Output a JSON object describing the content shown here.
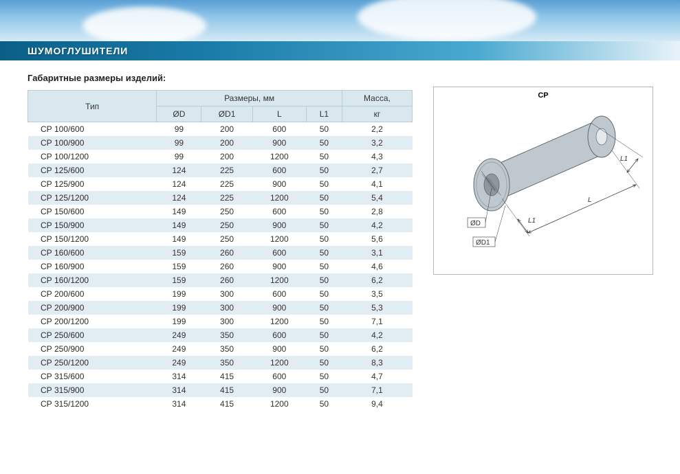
{
  "colors": {
    "title_bar_start": "#0b5f86",
    "title_bar_end": "#e8f3f9",
    "header_bg": "#d9e7ef",
    "header_border": "#b9cbd5",
    "row_odd": "#ffffff",
    "row_even": "#e2edf3",
    "diagram_border": "#b0b8bd",
    "text": "#333333"
  },
  "page_title": "ШУМОГЛУШИТЕЛИ",
  "subtitle": "Габаритные размеры изделий:",
  "table": {
    "type": "table",
    "header_row1": {
      "type": "Тип",
      "sizes_group": "Размеры, мм",
      "mass": "Масса,"
    },
    "header_row2": {
      "d": "ØD",
      "d1": "ØD1",
      "l": "L",
      "l1": "L1",
      "mass_unit": "кг"
    },
    "columns": [
      "type",
      "d",
      "d1",
      "l",
      "l1",
      "mass"
    ],
    "rows": [
      {
        "type": "СР 100/600",
        "d": "99",
        "d1": "200",
        "l": "600",
        "l1": "50",
        "mass": "2,2"
      },
      {
        "type": "СР 100/900",
        "d": "99",
        "d1": "200",
        "l": "900",
        "l1": "50",
        "mass": "3,2"
      },
      {
        "type": "СР 100/1200",
        "d": "99",
        "d1": "200",
        "l": "1200",
        "l1": "50",
        "mass": "4,3"
      },
      {
        "type": "СР 125/600",
        "d": "124",
        "d1": "225",
        "l": "600",
        "l1": "50",
        "mass": "2,7"
      },
      {
        "type": "СР 125/900",
        "d": "124",
        "d1": "225",
        "l": "900",
        "l1": "50",
        "mass": "4,1"
      },
      {
        "type": "СР 125/1200",
        "d": "124",
        "d1": "225",
        "l": "1200",
        "l1": "50",
        "mass": "5,4"
      },
      {
        "type": "СР 150/600",
        "d": "149",
        "d1": "250",
        "l": "600",
        "l1": "50",
        "mass": "2,8"
      },
      {
        "type": "СР 150/900",
        "d": "149",
        "d1": "250",
        "l": "900",
        "l1": "50",
        "mass": "4,2"
      },
      {
        "type": "СР 150/1200",
        "d": "149",
        "d1": "250",
        "l": "1200",
        "l1": "50",
        "mass": "5,6"
      },
      {
        "type": "СР 160/600",
        "d": "159",
        "d1": "260",
        "l": "600",
        "l1": "50",
        "mass": "3,1"
      },
      {
        "type": "СР 160/900",
        "d": "159",
        "d1": "260",
        "l": "900",
        "l1": "50",
        "mass": "4,6"
      },
      {
        "type": "СР 160/1200",
        "d": "159",
        "d1": "260",
        "l": "1200",
        "l1": "50",
        "mass": "6,2"
      },
      {
        "type": "СР 200/600",
        "d": "199",
        "d1": "300",
        "l": "600",
        "l1": "50",
        "mass": "3,5"
      },
      {
        "type": "СР 200/900",
        "d": "199",
        "d1": "300",
        "l": "900",
        "l1": "50",
        "mass": "5,3"
      },
      {
        "type": "СР 200/1200",
        "d": "199",
        "d1": "300",
        "l": "1200",
        "l1": "50",
        "mass": "7,1"
      },
      {
        "type": "СР 250/600",
        "d": "249",
        "d1": "350",
        "l": "600",
        "l1": "50",
        "mass": "4,2"
      },
      {
        "type": "СР 250/900",
        "d": "249",
        "d1": "350",
        "l": "900",
        "l1": "50",
        "mass": "6,2"
      },
      {
        "type": "СР 250/1200",
        "d": "249",
        "d1": "350",
        "l": "1200",
        "l1": "50",
        "mass": "8,3"
      },
      {
        "type": "СР 315/600",
        "d": "314",
        "d1": "415",
        "l": "600",
        "l1": "50",
        "mass": "4,7"
      },
      {
        "type": "СР 315/900",
        "d": "314",
        "d1": "415",
        "l": "900",
        "l1": "50",
        "mass": "7,1"
      },
      {
        "type": "СР 315/1200",
        "d": "314",
        "d1": "415",
        "l": "1200",
        "l1": "50",
        "mass": "9,4"
      }
    ]
  },
  "diagram": {
    "title": "СР",
    "labels": {
      "L": "L",
      "L1": "L1",
      "D": "ØD",
      "D1": "ØD1"
    },
    "body_fill": "#bfc8ce",
    "body_stroke": "#5f6a70",
    "hatch_fill": "#8e989e",
    "dim_line": "#333333",
    "font_size": 10
  }
}
